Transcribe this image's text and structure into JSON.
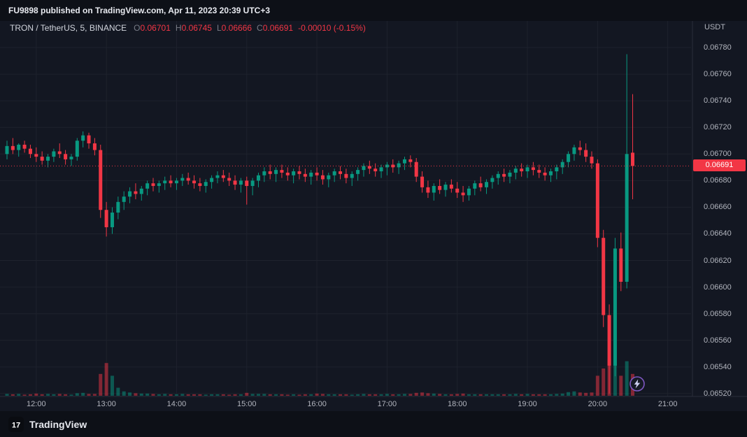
{
  "banner": {
    "text": "FU9898 published on TradingView.com, Apr 11, 2023 20:39 UTC+3"
  },
  "legend": {
    "symbol": "TRON / TetherUS, 5, BINANCE",
    "ohlc": [
      {
        "label": "O",
        "value": "0.06701"
      },
      {
        "label": "H",
        "value": "0.06745"
      },
      {
        "label": "L",
        "value": "0.06666"
      },
      {
        "label": "C",
        "value": "0.06691"
      }
    ],
    "change": "-0.00010 (-0.15%)"
  },
  "price_axis": {
    "currency": "USDT",
    "last_price": "0.06691"
  },
  "footer": {
    "brand": "TradingView",
    "logo_glyph": "17"
  },
  "colors": {
    "bg": "#131722",
    "up": "#089981",
    "down": "#f23645",
    "badge": "#f23645",
    "grid": "#1e222d",
    "axis_line": "#2a2e39",
    "text_muted": "#b2b5be",
    "lightning": "#7e57c2"
  },
  "chart_data": {
    "type": "candlestick",
    "title": "TRON / TetherUS, 5, BINANCE",
    "interval": "5",
    "start_time": "11:35",
    "interval_minutes": 5,
    "ylim": [
      0.06505,
      0.0679
    ],
    "y_ticks": [
      0.0678,
      0.0676,
      0.0674,
      0.0672,
      0.067,
      0.0668,
      0.0666,
      0.0664,
      0.0662,
      0.066,
      0.0658,
      0.0656,
      0.0654,
      0.0652
    ],
    "x_ticks": [
      "12:00",
      "13:00",
      "14:00",
      "15:00",
      "16:00",
      "17:00",
      "18:00",
      "19:00",
      "20:00",
      "21:00"
    ],
    "grid": true,
    "legend_position": "top-left",
    "candles": [
      [
        0.067,
        0.0671,
        0.06696,
        0.06706,
        5
      ],
      [
        0.06706,
        0.06712,
        0.067,
        0.06703,
        4
      ],
      [
        0.06703,
        0.06708,
        0.06698,
        0.06707,
        5
      ],
      [
        0.06707,
        0.0671,
        0.06701,
        0.06704,
        3
      ],
      [
        0.06704,
        0.06707,
        0.06697,
        0.067,
        4
      ],
      [
        0.067,
        0.06705,
        0.06694,
        0.06698,
        6
      ],
      [
        0.06698,
        0.06702,
        0.06692,
        0.06695,
        4
      ],
      [
        0.06695,
        0.067,
        0.0669,
        0.06698,
        5
      ],
      [
        0.06698,
        0.06704,
        0.06694,
        0.06702,
        4
      ],
      [
        0.06702,
        0.06708,
        0.06697,
        0.067,
        5
      ],
      [
        0.067,
        0.06703,
        0.06692,
        0.06696,
        4
      ],
      [
        0.06696,
        0.067,
        0.06691,
        0.06698,
        3
      ],
      [
        0.06698,
        0.06712,
        0.06695,
        0.0671,
        7
      ],
      [
        0.0671,
        0.06717,
        0.06705,
        0.06714,
        8
      ],
      [
        0.06714,
        0.06716,
        0.06704,
        0.06708,
        5
      ],
      [
        0.06708,
        0.06712,
        0.06699,
        0.06703,
        5
      ],
      [
        0.06703,
        0.06707,
        0.06652,
        0.06658,
        60
      ],
      [
        0.06658,
        0.06664,
        0.06638,
        0.06645,
        90
      ],
      [
        0.06645,
        0.0666,
        0.0664,
        0.06656,
        55
      ],
      [
        0.06656,
        0.06668,
        0.06651,
        0.06664,
        22
      ],
      [
        0.06664,
        0.06672,
        0.06658,
        0.06668,
        12
      ],
      [
        0.06668,
        0.06675,
        0.06663,
        0.06672,
        9
      ],
      [
        0.06672,
        0.06678,
        0.06666,
        0.0667,
        7
      ],
      [
        0.0667,
        0.06676,
        0.06665,
        0.06674,
        6
      ],
      [
        0.06674,
        0.0668,
        0.06669,
        0.06678,
        6
      ],
      [
        0.06678,
        0.06682,
        0.06672,
        0.06676,
        5
      ],
      [
        0.06676,
        0.0668,
        0.06671,
        0.06678,
        4
      ],
      [
        0.06678,
        0.06683,
        0.06673,
        0.0668,
        5
      ],
      [
        0.0668,
        0.06684,
        0.06675,
        0.06678,
        4
      ],
      [
        0.06678,
        0.06682,
        0.06673,
        0.0668,
        4
      ],
      [
        0.0668,
        0.06685,
        0.06676,
        0.06682,
        5
      ],
      [
        0.06682,
        0.06686,
        0.06677,
        0.0668,
        4
      ],
      [
        0.0668,
        0.06684,
        0.06674,
        0.06678,
        4
      ],
      [
        0.06678,
        0.06682,
        0.06672,
        0.06676,
        4
      ],
      [
        0.06676,
        0.06681,
        0.06671,
        0.06679,
        3
      ],
      [
        0.06679,
        0.06684,
        0.06674,
        0.06682,
        4
      ],
      [
        0.06682,
        0.06687,
        0.06678,
        0.06684,
        4
      ],
      [
        0.06684,
        0.06688,
        0.06679,
        0.06682,
        4
      ],
      [
        0.06682,
        0.06686,
        0.06676,
        0.0668,
        3
      ],
      [
        0.0668,
        0.06684,
        0.06673,
        0.06677,
        4
      ],
      [
        0.06677,
        0.06682,
        0.06671,
        0.0668,
        4
      ],
      [
        0.0668,
        0.06683,
        0.06662,
        0.06676,
        8
      ],
      [
        0.06676,
        0.06682,
        0.06669,
        0.0668,
        5
      ],
      [
        0.0668,
        0.06686,
        0.06675,
        0.06684,
        5
      ],
      [
        0.06684,
        0.0669,
        0.06679,
        0.06687,
        5
      ],
      [
        0.06687,
        0.06692,
        0.06681,
        0.06685,
        4
      ],
      [
        0.06685,
        0.0669,
        0.06679,
        0.06688,
        4
      ],
      [
        0.06688,
        0.06692,
        0.06682,
        0.06686,
        4
      ],
      [
        0.06686,
        0.0669,
        0.0668,
        0.06684,
        3
      ],
      [
        0.06684,
        0.06689,
        0.06678,
        0.06687,
        4
      ],
      [
        0.06687,
        0.06691,
        0.06681,
        0.06685,
        3
      ],
      [
        0.06685,
        0.06689,
        0.06679,
        0.06683,
        4
      ],
      [
        0.06683,
        0.06688,
        0.06677,
        0.06686,
        4
      ],
      [
        0.06686,
        0.0669,
        0.0668,
        0.06684,
        6
      ],
      [
        0.06684,
        0.06688,
        0.06677,
        0.06681,
        5
      ],
      [
        0.06681,
        0.06686,
        0.06675,
        0.06684,
        4
      ],
      [
        0.06684,
        0.06689,
        0.06679,
        0.06687,
        4
      ],
      [
        0.06687,
        0.06691,
        0.06681,
        0.06685,
        4
      ],
      [
        0.06685,
        0.06689,
        0.06678,
        0.06682,
        4
      ],
      [
        0.06682,
        0.06687,
        0.06676,
        0.06685,
        3
      ],
      [
        0.06685,
        0.0669,
        0.0668,
        0.06688,
        4
      ],
      [
        0.06688,
        0.06693,
        0.06683,
        0.06691,
        5
      ],
      [
        0.06691,
        0.06695,
        0.06685,
        0.06689,
        4
      ],
      [
        0.06689,
        0.06693,
        0.06683,
        0.06687,
        4
      ],
      [
        0.06687,
        0.06692,
        0.06682,
        0.0669,
        4
      ],
      [
        0.0669,
        0.06694,
        0.06684,
        0.06692,
        5
      ],
      [
        0.06692,
        0.06696,
        0.06686,
        0.0669,
        4
      ],
      [
        0.0669,
        0.06695,
        0.06685,
        0.06693,
        4
      ],
      [
        0.06693,
        0.06698,
        0.06688,
        0.06696,
        5
      ],
      [
        0.06696,
        0.06699,
        0.0669,
        0.06694,
        5
      ],
      [
        0.06694,
        0.06697,
        0.06679,
        0.06683,
        8
      ],
      [
        0.06683,
        0.06687,
        0.06671,
        0.06675,
        9
      ],
      [
        0.06675,
        0.0668,
        0.06667,
        0.06671,
        7
      ],
      [
        0.06671,
        0.06678,
        0.06665,
        0.06676,
        6
      ],
      [
        0.06676,
        0.06681,
        0.0667,
        0.06673,
        5
      ],
      [
        0.06673,
        0.06679,
        0.06668,
        0.06677,
        4
      ],
      [
        0.06677,
        0.06681,
        0.06671,
        0.06674,
        4
      ],
      [
        0.06674,
        0.06679,
        0.06667,
        0.06671,
        5
      ],
      [
        0.06671,
        0.06676,
        0.06664,
        0.06669,
        6
      ],
      [
        0.06669,
        0.06676,
        0.06665,
        0.06674,
        4
      ],
      [
        0.06674,
        0.0668,
        0.06669,
        0.06678,
        4
      ],
      [
        0.06678,
        0.06683,
        0.06672,
        0.06675,
        4
      ],
      [
        0.06675,
        0.06681,
        0.0667,
        0.06679,
        4
      ],
      [
        0.06679,
        0.06684,
        0.06674,
        0.06682,
        4
      ],
      [
        0.06682,
        0.06687,
        0.06677,
        0.06685,
        4
      ],
      [
        0.06685,
        0.06689,
        0.06679,
        0.06683,
        4
      ],
      [
        0.06683,
        0.06688,
        0.06678,
        0.06686,
        4
      ],
      [
        0.06686,
        0.06691,
        0.06681,
        0.06689,
        5
      ],
      [
        0.06689,
        0.06693,
        0.06683,
        0.06687,
        4
      ],
      [
        0.06687,
        0.06692,
        0.06682,
        0.0669,
        5
      ],
      [
        0.0669,
        0.06694,
        0.06684,
        0.06688,
        4
      ],
      [
        0.06688,
        0.06692,
        0.06682,
        0.06686,
        4
      ],
      [
        0.06686,
        0.0669,
        0.0668,
        0.06684,
        4
      ],
      [
        0.06684,
        0.06689,
        0.06679,
        0.06687,
        4
      ],
      [
        0.06687,
        0.06692,
        0.06681,
        0.0669,
        5
      ],
      [
        0.0669,
        0.06696,
        0.06685,
        0.06694,
        6
      ],
      [
        0.06694,
        0.06702,
        0.0669,
        0.067,
        10
      ],
      [
        0.067,
        0.06707,
        0.06695,
        0.06705,
        12
      ],
      [
        0.06705,
        0.0671,
        0.06699,
        0.06703,
        9
      ],
      [
        0.06703,
        0.06708,
        0.06694,
        0.06698,
        8
      ],
      [
        0.06698,
        0.06702,
        0.06689,
        0.06693,
        9
      ],
      [
        0.06693,
        0.06696,
        0.0663,
        0.06637,
        55
      ],
      [
        0.06637,
        0.06643,
        0.0657,
        0.06579,
        75
      ],
      [
        0.06579,
        0.06587,
        0.0652,
        0.06541,
        100
      ],
      [
        0.06541,
        0.06637,
        0.06533,
        0.06629,
        85
      ],
      [
        0.06629,
        0.06641,
        0.06597,
        0.06604,
        55
      ],
      [
        0.06604,
        0.06775,
        0.06599,
        0.067,
        95
      ],
      [
        0.06701,
        0.06745,
        0.06666,
        0.06691,
        60
      ]
    ]
  }
}
